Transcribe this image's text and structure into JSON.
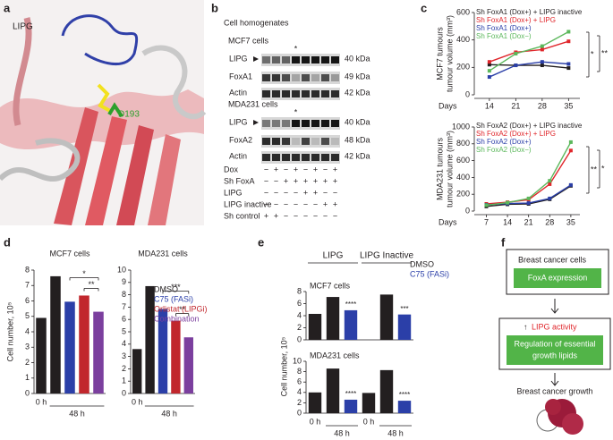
{
  "panel_labels": [
    "a",
    "b",
    "c",
    "d",
    "e",
    "f"
  ],
  "panel_a": {
    "title": "LIPG",
    "residue": "D193"
  },
  "panel_b": {
    "title": "Cell homogenates",
    "blots": [
      {
        "cell_line": "MCF7 cells",
        "marker": "*",
        "rows": [
          {
            "label": "LIPG",
            "size": "40 kDa"
          },
          {
            "label": "FoxA1",
            "size": "49 kDa"
          },
          {
            "label": "Actin",
            "size": "42 kDa"
          }
        ]
      },
      {
        "cell_line": "MDA231 cells",
        "marker": "*",
        "rows": [
          {
            "label": "LIPG",
            "size": "40 kDa"
          },
          {
            "label": "FoxA2",
            "size": "48 kDa"
          },
          {
            "label": "Actin",
            "size": "42 kDa"
          }
        ]
      }
    ],
    "conditions": [
      {
        "label": "Dox",
        "signs": [
          "−",
          "+",
          "−",
          "+",
          "−",
          "+",
          "−",
          "+"
        ]
      },
      {
        "label": "Sh FoxA",
        "signs": [
          "−",
          "−",
          "+",
          "+",
          "+",
          "+",
          "+",
          "+"
        ]
      },
      {
        "label": "LIPG",
        "signs": [
          "−",
          "−",
          "−",
          "−",
          "+",
          "+",
          "−",
          "−"
        ]
      },
      {
        "label": "LIPG inactive",
        "signs": [
          "−",
          "−",
          "−",
          "−",
          "−",
          "−",
          "+",
          "+"
        ]
      },
      {
        "label": "Sh control",
        "signs": [
          "+",
          "+",
          "−",
          "−",
          "−",
          "−",
          "−",
          "−"
        ]
      }
    ]
  },
  "panel_f": {
    "top": "Breast cancer cells",
    "top_box": "FoxA expression",
    "arrow_up": "↑",
    "middle": "LIPG activity",
    "middle_box": [
      "Regulation of essential",
      "growth lipids"
    ],
    "bottom": "Breast cancer growth"
  },
  "chart_data": [
    {
      "type": "line",
      "y_label": [
        "MCF7 tumours",
        "tumour volume (mm³)"
      ],
      "x_label": "Days",
      "x": [
        14,
        21,
        28,
        35
      ],
      "xlim": [
        10,
        38
      ],
      "xticks": [
        14,
        21,
        28,
        35
      ],
      "ylim": [
        0,
        600
      ],
      "yticks": [
        0,
        200,
        400,
        600
      ],
      "series": [
        {
          "name": "Sh FoxA1 (Dox+) + LIPG inactive",
          "color": "#231f20",
          "values": [
            220,
            215,
            215,
            195
          ]
        },
        {
          "name": "Sh FoxA1 (Dox+) + LIPG",
          "color": "#e0262b",
          "values": [
            240,
            310,
            330,
            390
          ]
        },
        {
          "name": "Sh FoxA1 (Dox+)",
          "color": "#2b3fa8",
          "values": [
            130,
            215,
            240,
            225
          ]
        },
        {
          "name": "Sh FoxA1 (Dox−)",
          "color": "#5cb85c",
          "values": [
            175,
            300,
            355,
            460
          ]
        }
      ],
      "significance": [
        "*",
        "**"
      ]
    },
    {
      "type": "line",
      "y_label": [
        "MDA231 tumours",
        "tumour volume (mm³)"
      ],
      "x_label": "Days",
      "x": [
        7,
        14,
        21,
        28,
        35
      ],
      "xlim": [
        3,
        38
      ],
      "xticks": [
        7,
        14,
        21,
        28,
        35
      ],
      "ylim": [
        0,
        1000
      ],
      "yticks": [
        0,
        200,
        400,
        600,
        800,
        1000
      ],
      "series": [
        {
          "name": "Sh FoxA2 (Dox+) + LIPG inactive",
          "color": "#231f20",
          "values": [
            55,
            80,
            85,
            140,
            300
          ]
        },
        {
          "name": "Sh FoxA2 (Dox+) + LIPG",
          "color": "#e0262b",
          "values": [
            85,
            105,
            135,
            320,
            720
          ]
        },
        {
          "name": "Sh FoxA2 (Dox+)",
          "color": "#2b3fa8",
          "values": [
            75,
            90,
            95,
            150,
            310
          ]
        },
        {
          "name": "Sh FoxA2 (Dox−)",
          "color": "#5cb85c",
          "values": [
            70,
            100,
            150,
            360,
            820
          ]
        }
      ],
      "significance": [
        "**",
        "*"
      ]
    },
    {
      "type": "bar",
      "title": "MCF7 cells",
      "y_label": "Cell number, 10⁵",
      "values": [
        4.9,
        7.6,
        5.95,
        6.35,
        5.3
      ],
      "colors": [
        "#231f20",
        "#231f20",
        "#2b3fa8",
        "#c1272d",
        "#7b3f9e"
      ],
      "ylim": [
        0,
        8
      ],
      "yticks": [
        0,
        1,
        2,
        3,
        4,
        5,
        6,
        7,
        8
      ],
      "groups": [
        {
          "label": "0 h",
          "from": 0,
          "to": 0
        },
        {
          "label": "48 h",
          "from": 1,
          "to": 4
        }
      ],
      "brackets": [
        {
          "text": "*",
          "from": 2,
          "to": 4
        },
        {
          "text": "**",
          "from": 3,
          "to": 4
        }
      ]
    },
    {
      "type": "bar",
      "title": "MDA231 cells",
      "values": [
        3.6,
        8.7,
        6.85,
        5.9,
        4.55
      ],
      "colors": [
        "#231f20",
        "#231f20",
        "#2b3fa8",
        "#c1272d",
        "#7b3f9e"
      ],
      "ylim": [
        0,
        10
      ],
      "yticks": [
        0,
        1,
        2,
        3,
        4,
        5,
        6,
        7,
        8,
        9,
        10
      ],
      "groups": [
        {
          "label": "0 h",
          "from": 0,
          "to": 0
        },
        {
          "label": "48 h",
          "from": 1,
          "to": 4
        }
      ],
      "brackets": [
        {
          "text": "***",
          "from": 2,
          "to": 4
        },
        {
          "text": "**",
          "from": 3,
          "to": 4
        }
      ],
      "legend": [
        {
          "name": "DMSO",
          "color": "#231f20"
        },
        {
          "name": "C75 (FASi)",
          "color": "#2b3fa8"
        },
        {
          "name": "Orlistat (LIPGi)",
          "color": "#c1272d"
        },
        {
          "name": "Combination",
          "color": "#7b3f9e"
        }
      ]
    },
    {
      "type": "bar",
      "title": "MCF7 cells",
      "y_label": "Cell number, 10⁵",
      "values": [
        4.3,
        7.1,
        4.9,
        null,
        7.5,
        4.2
      ],
      "colors": [
        "#231f20",
        "#231f20",
        "#2b3fa8",
        "#231f20",
        "#231f20",
        "#2b3fa8"
      ],
      "ylim": [
        0,
        8
      ],
      "yticks": [
        0,
        2,
        4,
        6,
        8
      ],
      "headers": [
        {
          "label": "LIPG",
          "from": 0,
          "to": 2
        },
        {
          "label": "LIPG Inactive",
          "from": 3,
          "to": 5
        }
      ],
      "legend": [
        {
          "name": "DMSO",
          "color": "#231f20"
        },
        {
          "name": "C75 (FASi)",
          "color": "#2b3fa8"
        }
      ],
      "stars": [
        {
          "text": "****",
          "bar": 2
        },
        {
          "text": "***",
          "bar": 5
        }
      ]
    },
    {
      "type": "bar",
      "title": "MDA231 cells",
      "values": [
        4.0,
        8.6,
        2.6,
        3.9,
        8.3,
        2.4
      ],
      "colors": [
        "#231f20",
        "#231f20",
        "#2b3fa8",
        "#231f20",
        "#231f20",
        "#2b3fa8"
      ],
      "ylim": [
        0,
        10
      ],
      "yticks": [
        0,
        2,
        4,
        6,
        8,
        10
      ],
      "groups": [
        {
          "label": "0 h",
          "from": 0,
          "to": 0
        },
        {
          "label": "48 h",
          "from": 1,
          "to": 2
        },
        {
          "label": "0 h",
          "from": 3,
          "to": 3
        },
        {
          "label": "48 h",
          "from": 4,
          "to": 5
        }
      ],
      "stars": [
        {
          "text": "****",
          "bar": 2
        },
        {
          "text": "****",
          "bar": 5
        }
      ]
    }
  ]
}
